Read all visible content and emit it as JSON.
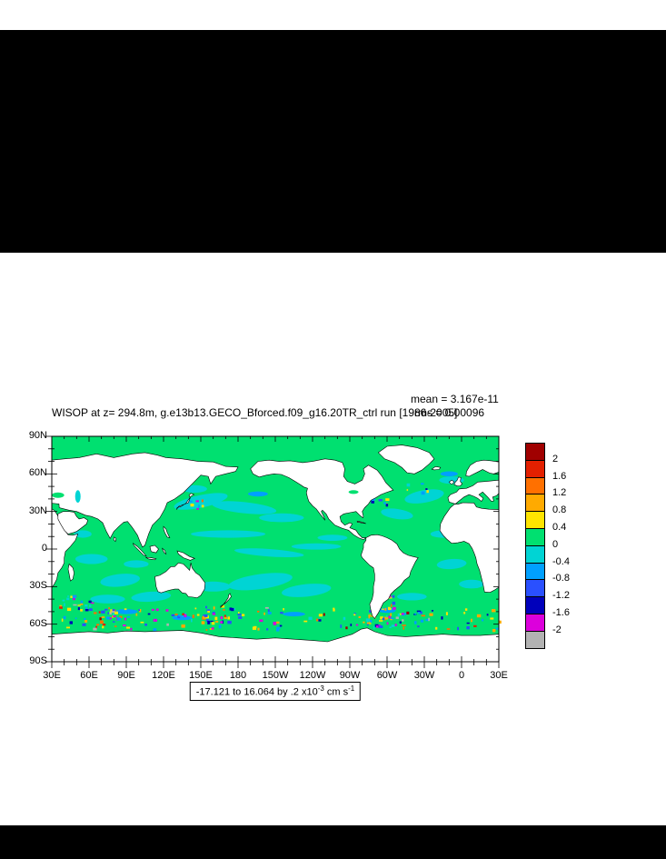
{
  "chart_data": {
    "type": "heatmap",
    "title": "WISOP at z= 294.8m, g.e13b13.GECO_Bforced.f09_g16.20TR_ctrl run [1986-2005]",
    "annotations": {
      "mean": "mean = 3.167e-11",
      "rms": "rms = 0.00096"
    },
    "x_axis": {
      "tick_labels": [
        "30E",
        "60E",
        "90E",
        "120E",
        "150E",
        "180",
        "150W",
        "120W",
        "90W",
        "60W",
        "30W",
        "0",
        "30E"
      ],
      "lon_range_deg": [
        30,
        390
      ]
    },
    "y_axis": {
      "tick_labels": [
        "90N",
        "60N",
        "30N",
        "0",
        "30S",
        "60S",
        "90S"
      ],
      "lat_range_deg": [
        -90,
        90
      ]
    },
    "colorbar": {
      "tick_labels": [
        "2",
        "1.6",
        "1.2",
        "0.8",
        "0.4",
        "0",
        "-0.4",
        "-0.8",
        "-1.2",
        "-1.6",
        "-2"
      ],
      "levels": [
        2,
        1.6,
        1.2,
        0.8,
        0.4,
        0,
        -0.4,
        -0.8,
        -1.2,
        -1.6,
        -2
      ],
      "colors": [
        "#a00000",
        "#e32000",
        "#ff7000",
        "#ffaa00",
        "#ffe400",
        "#00e070",
        "#00d4d4",
        "#00a0ff",
        "#2a50ff",
        "#0000bb",
        "#dc00dc",
        "#b2b2b2"
      ]
    },
    "caption": {
      "prefix": "-17.121 to 16.064 by .2 x10",
      "sup1": "-3",
      "mid": " cm s",
      "sup2": "-1"
    },
    "value_range": {
      "min": -17.121,
      "max": 16.064,
      "interval": 0.2
    }
  }
}
